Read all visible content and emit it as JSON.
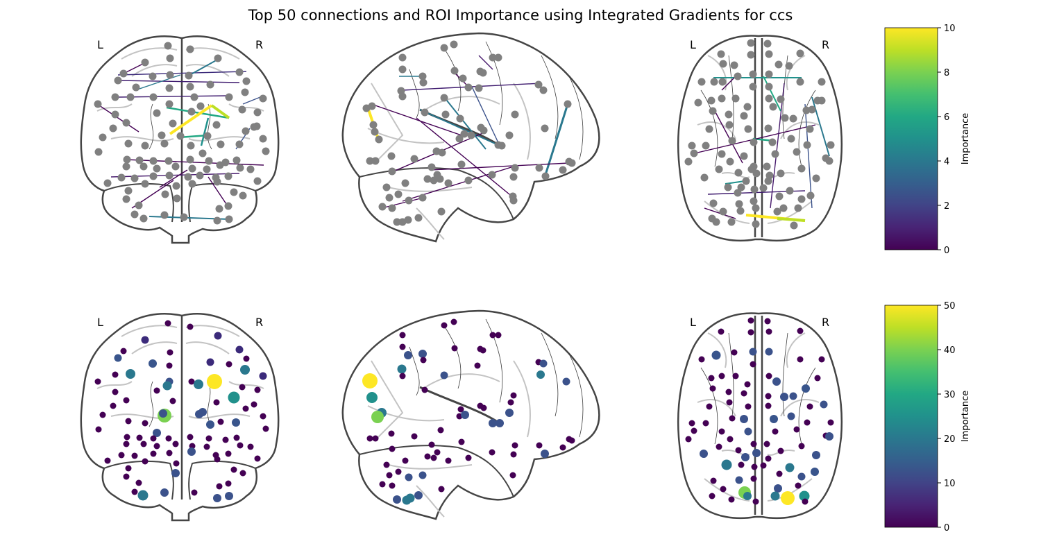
{
  "figure": {
    "title": "Top 50 connections and ROI Importance using Integrated Gradients for ccs"
  },
  "panels": {
    "connectome": {
      "views": [
        {
          "name": "coronal",
          "left_label": "L",
          "right_label": "R"
        },
        {
          "name": "sagittal"
        },
        {
          "name": "axial",
          "left_label": "L",
          "right_label": "R"
        }
      ],
      "colorbar": {
        "label": "Importance",
        "min": 0,
        "max": 10,
        "ticks": [
          "0",
          "2",
          "4",
          "6",
          "8",
          "10"
        ],
        "colormap": "viridis"
      }
    },
    "roi_importance": {
      "views": [
        {
          "name": "coronal",
          "left_label": "L",
          "right_label": "R"
        },
        {
          "name": "sagittal"
        },
        {
          "name": "axial",
          "left_label": "L",
          "right_label": "R"
        }
      ],
      "colorbar": {
        "label": "Importance",
        "min": 0,
        "max": 50,
        "ticks": [
          "0",
          "10",
          "20",
          "30",
          "40",
          "50"
        ],
        "colormap": "viridis"
      }
    }
  },
  "colors": {
    "node_gray": "#808080",
    "outline": "#444444",
    "sulci": "#bdbdbd"
  }
}
